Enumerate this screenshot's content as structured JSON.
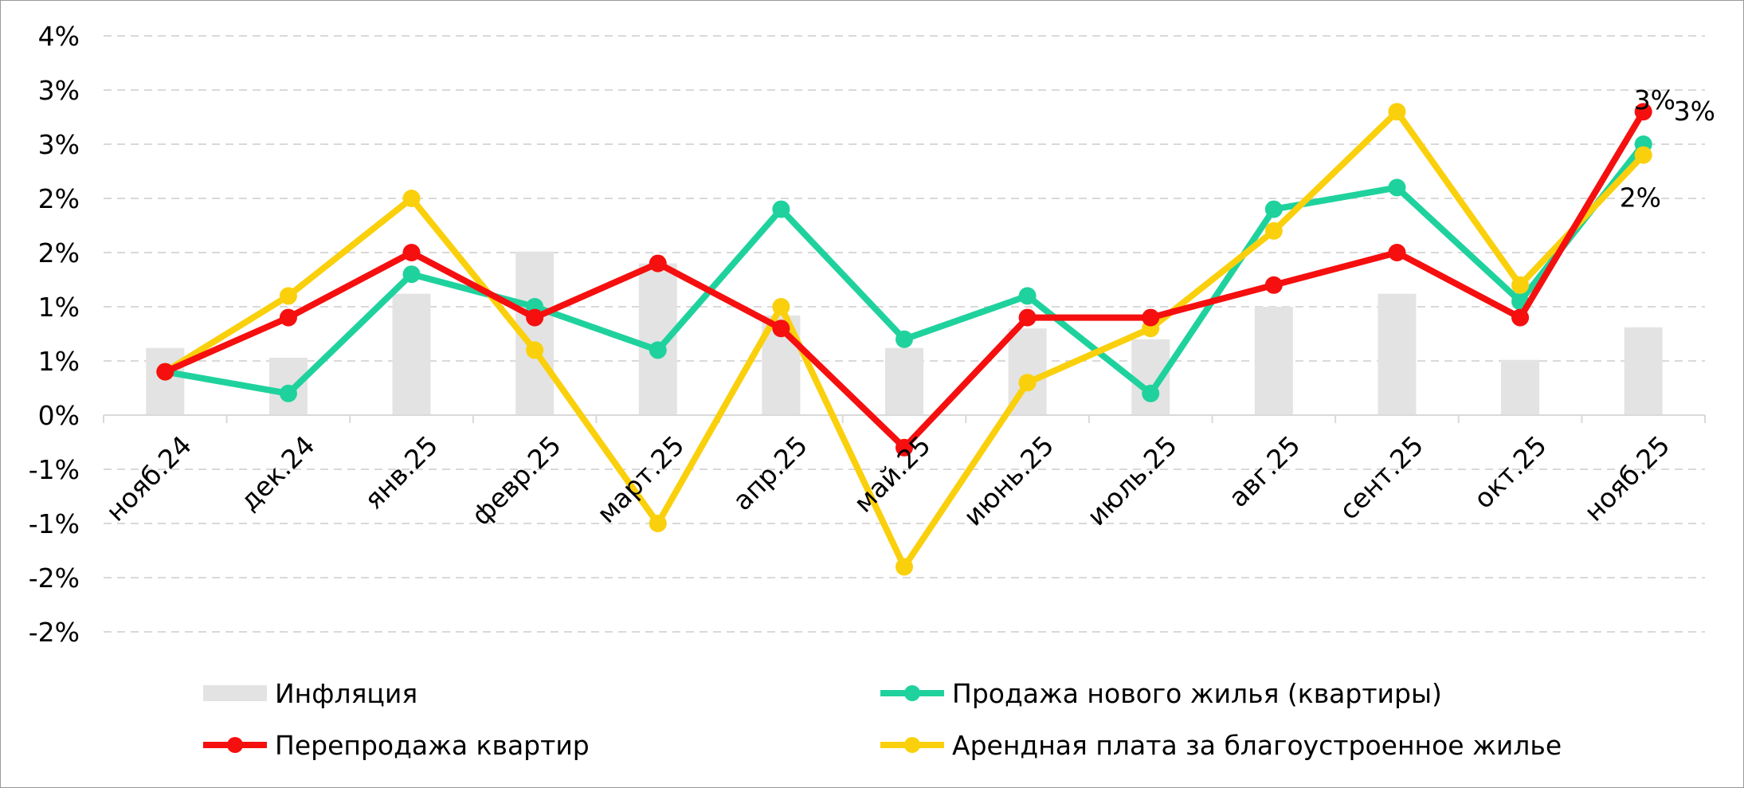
{
  "chart_data": {
    "type": "bar+line",
    "categories": [
      "нояб.24",
      "дек.24",
      "янв.25",
      "февр.25",
      "март.25",
      "апр.25",
      "май.25",
      "июнь.25",
      "июль.25",
      "авг.25",
      "сент.25",
      "окт.25",
      "нояб.25"
    ],
    "y_tick_labels": [
      "4%",
      "3%",
      "3%",
      "2%",
      "2%",
      "1%",
      "1%",
      "0%",
      "-1%",
      "-1%",
      "-2%",
      "-2%"
    ],
    "ylim": [
      -2,
      3.5
    ],
    "grid": true,
    "legend_position": "bottom",
    "series": [
      {
        "name": "Инфляция",
        "kind": "bar",
        "color": "#e3e3e3",
        "values": [
          0.62,
          0.53,
          1.12,
          1.51,
          1.4,
          0.92,
          0.62,
          0.8,
          0.7,
          1.0,
          1.12,
          0.51,
          0.81
        ]
      },
      {
        "name": "Продажа нового жилья (квартиры)",
        "kind": "line",
        "color": "#1fd29d",
        "values": [
          0.4,
          0.2,
          1.3,
          1.0,
          0.6,
          1.9,
          0.7,
          1.1,
          0.2,
          1.9,
          2.1,
          1.05,
          2.5
        ]
      },
      {
        "name": "Перепродажа квартир",
        "kind": "line",
        "color": "#f50f0f",
        "values": [
          0.4,
          0.9,
          1.5,
          0.9,
          1.4,
          0.8,
          -0.3,
          0.9,
          0.9,
          1.2,
          1.5,
          0.9,
          2.8
        ]
      },
      {
        "name": "Арендная плата за благоустроенное жилье",
        "kind": "line",
        "color": "#fad00c",
        "values": [
          0.4,
          1.1,
          2.0,
          0.6,
          -1.0,
          1.0,
          -1.4,
          0.3,
          0.8,
          1.7,
          2.8,
          1.2,
          2.4
        ]
      }
    ],
    "annotations": [
      {
        "series": "Перепродажа квартир",
        "index": 12,
        "text": "3%"
      },
      {
        "series": "Продажа нового жилья (квартиры)",
        "index": 12,
        "text": "3%"
      },
      {
        "series": "Арендная плата за благоустроенное жилье",
        "index": 12,
        "text": "2%"
      }
    ]
  }
}
